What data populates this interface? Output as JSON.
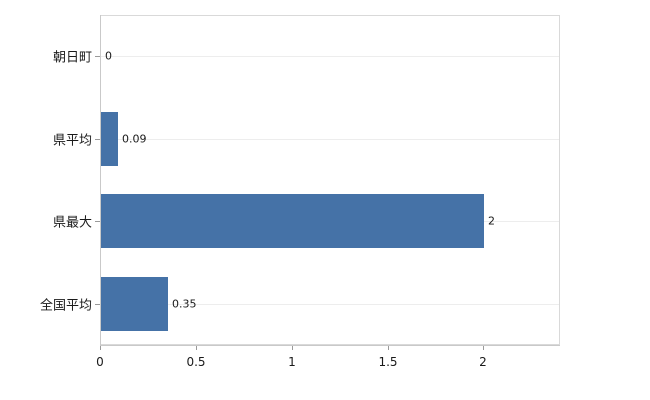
{
  "chart_data": {
    "type": "bar",
    "orientation": "horizontal",
    "title": "",
    "xlabel": "",
    "ylabel": "",
    "categories": [
      "朝日町",
      "県平均",
      "県最大",
      "全国平均"
    ],
    "values": [
      0,
      0.09,
      2,
      0.35
    ],
    "value_labels": [
      "0",
      "0.09",
      "2",
      "0.35"
    ],
    "x_ticks": [
      0,
      0.5,
      1,
      1.5,
      2
    ],
    "x_tick_labels": [
      "0",
      "0.5",
      "1",
      "1.5",
      "2"
    ],
    "xlim": [
      0,
      2.4
    ],
    "grid": "subtle-horizontal",
    "legend": "none",
    "bar_color": "#4572a7",
    "axis_color": "#c9c9c9",
    "text_color": "#1a1a1a"
  }
}
